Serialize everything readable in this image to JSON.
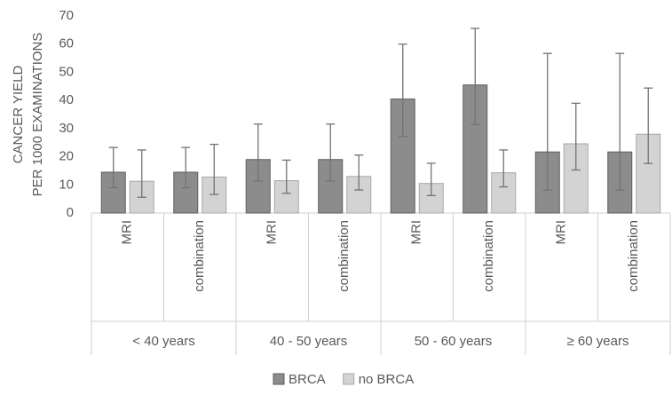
{
  "chart_data": {
    "type": "bar",
    "y_label": [
      "CANCER YIELD",
      "PER 1000 EXAMINATIONS"
    ],
    "groups": [
      "< 40 years",
      "40 - 50 years",
      "50 - 60 years",
      "≥ 60 years"
    ],
    "categories": [
      "MRI",
      "combination",
      "MRI",
      "combination",
      "MRI",
      "combination",
      "MRI",
      "combination"
    ],
    "series": [
      {
        "name": "BRCA",
        "color": "#8c8c8c",
        "edge": "#5e5e5e",
        "values": [
          14.5,
          14.5,
          19,
          19,
          40.5,
          45.5,
          21.7,
          21.7
        ],
        "lower": [
          9,
          9,
          11.3,
          11.3,
          27.2,
          31.4,
          8.1,
          8.1
        ],
        "upper": [
          23.3,
          23.3,
          31.6,
          31.6,
          60,
          65.6,
          56.7,
          56.7
        ]
      },
      {
        "name": "no BRCA",
        "color": "#d3d3d3",
        "edge": "#a8a8a8",
        "values": [
          11.3,
          12.8,
          11.5,
          13,
          10.5,
          14.3,
          24.6,
          28
        ],
        "lower": [
          5.6,
          6.6,
          7,
          8.2,
          6.2,
          9.3,
          15.3,
          17.6
        ],
        "upper": [
          22.4,
          24.4,
          18.8,
          20.6,
          17.7,
          22.4,
          39,
          44.4
        ]
      }
    ],
    "ylim": [
      0,
      70
    ],
    "yticks": [
      0,
      10,
      20,
      30,
      40,
      50,
      60,
      70
    ],
    "grid": false,
    "error_color": "#737373",
    "legend": "bottom"
  }
}
